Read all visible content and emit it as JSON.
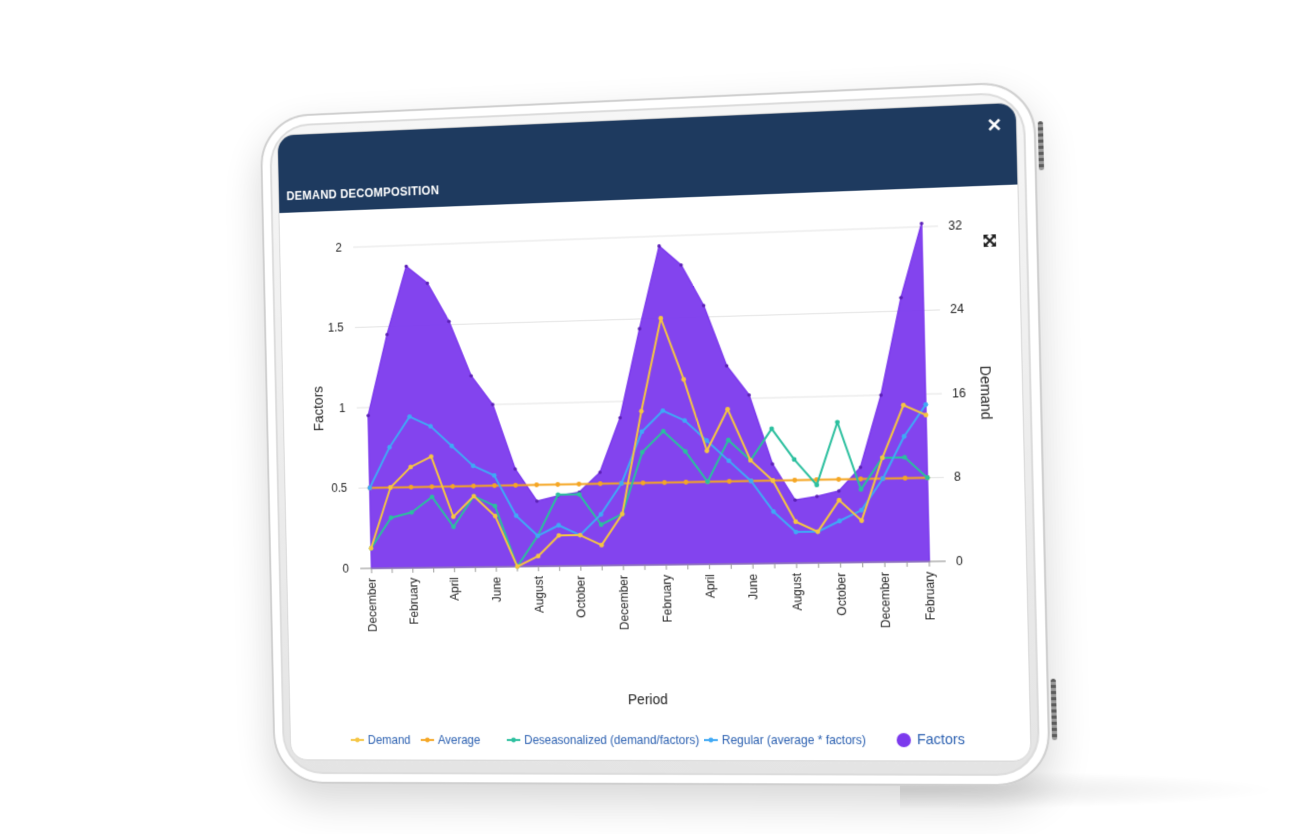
{
  "window": {
    "title": "DEMAND DECOMPOSITION",
    "close_icon": "close-icon",
    "expand_icon": "expand-icon"
  },
  "colors": {
    "header_bg": "#1e3a5f",
    "factors": "#7c3aed",
    "demand": "#f5c542",
    "average": "#f5a623",
    "deseasonalized": "#2bbf9e",
    "regular": "#3fa9f5"
  },
  "chart_data": {
    "type": "line",
    "xlabel": "Period",
    "ylabel_left": "Factors",
    "ylabel_right": "Demand",
    "ylim_left": [
      0,
      2
    ],
    "ylim_right": [
      0,
      32
    ],
    "yticks_left": [
      "0",
      "0.5",
      "1",
      "1.5",
      "2"
    ],
    "yticks_right": [
      "0",
      "8",
      "16",
      "24",
      "32"
    ],
    "x_tick_labels": [
      "December",
      "February",
      "April",
      "June",
      "August",
      "October",
      "December",
      "February",
      "April",
      "June",
      "August",
      "October",
      "December",
      "February"
    ],
    "grid": "horizontal",
    "legend_position": "bottom",
    "categories_count": 27,
    "series": [
      {
        "name": "Demand",
        "axis": "right",
        "kind": "line",
        "values": [
          2,
          8,
          10,
          11,
          5,
          7,
          5,
          0,
          1,
          3,
          3,
          2,
          5,
          15,
          24,
          18,
          11,
          15,
          10,
          8,
          4,
          3,
          6,
          4,
          10,
          15,
          14
        ]
      },
      {
        "name": "Average",
        "axis": "right",
        "kind": "line",
        "values": [
          8,
          8,
          8,
          8,
          8,
          8,
          8,
          8,
          8,
          8,
          8,
          8,
          8,
          8,
          8,
          8,
          8,
          8,
          8,
          8,
          8,
          8,
          8,
          8,
          8,
          8,
          8
        ]
      },
      {
        "name": "Deseasonalized (demand/factors)",
        "axis": "right",
        "kind": "line",
        "values": [
          2,
          5,
          5.5,
          7,
          4,
          7,
          6,
          0,
          3,
          7,
          7,
          4,
          5,
          11,
          13,
          11,
          8,
          12,
          10,
          13,
          10,
          7.5,
          13.5,
          7,
          10,
          10,
          8
        ]
      },
      {
        "name": "Regular (average * factors)",
        "axis": "right",
        "kind": "line",
        "values": [
          8,
          12,
          15,
          14,
          12,
          10,
          9,
          5,
          3,
          4,
          3,
          5,
          8,
          13,
          15,
          14,
          12,
          10,
          8,
          5,
          3,
          3,
          4,
          5,
          8,
          12,
          15
        ]
      },
      {
        "name": "Factors",
        "axis": "left",
        "kind": "area",
        "values": [
          0.95,
          1.45,
          1.87,
          1.76,
          1.52,
          1.18,
          1.0,
          0.6,
          0.4,
          0.43,
          0.45,
          0.57,
          0.9,
          1.44,
          1.94,
          1.82,
          1.57,
          1.2,
          1.02,
          0.6,
          0.38,
          0.4,
          0.43,
          0.57,
          1.0,
          1.58,
          2.02
        ]
      }
    ]
  }
}
